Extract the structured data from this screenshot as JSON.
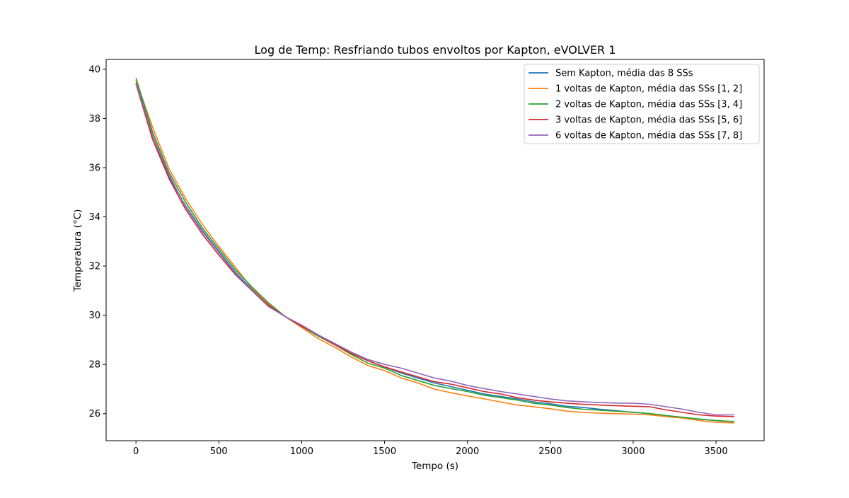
{
  "chart_data": {
    "type": "line",
    "title": "Log de Temp: Resfriando tubos envoltos por Kapton, eVOLVER 1",
    "xlabel": "Tempo (s)",
    "ylabel": "Temperatura (°C)",
    "xlim": [
      -180,
      3790
    ],
    "ylim": [
      24.9,
      40.4
    ],
    "xticks": [
      0,
      500,
      1000,
      1500,
      2000,
      2500,
      3000,
      3500
    ],
    "yticks": [
      26,
      28,
      30,
      32,
      34,
      36,
      38,
      40
    ],
    "xtick_labels": [
      "0",
      "500",
      "1000",
      "1500",
      "2000",
      "2500",
      "3000",
      "3500"
    ],
    "ytick_labels": [
      "26",
      "28",
      "30",
      "32",
      "34",
      "36",
      "38",
      "40"
    ],
    "grid": false,
    "legend_position": "top-right",
    "x": [
      0,
      100,
      200,
      300,
      400,
      500,
      600,
      700,
      800,
      900,
      1000,
      1100,
      1200,
      1300,
      1400,
      1500,
      1600,
      1700,
      1800,
      1900,
      2000,
      2100,
      2200,
      2300,
      2400,
      2500,
      2600,
      2700,
      2800,
      2900,
      3000,
      3100,
      3200,
      3300,
      3400,
      3500,
      3610
    ],
    "series": [
      {
        "name": "Sem Kapton, média das 8 SSs",
        "color": "#1f77b4",
        "values": [
          39.55,
          37.3,
          35.6,
          34.45,
          33.45,
          32.6,
          31.75,
          31.05,
          30.4,
          29.95,
          29.55,
          29.15,
          28.8,
          28.45,
          28.15,
          27.9,
          27.65,
          27.45,
          27.25,
          27.1,
          26.95,
          26.8,
          26.7,
          26.6,
          26.48,
          26.4,
          26.3,
          26.25,
          26.18,
          26.12,
          26.05,
          26.0,
          25.92,
          25.85,
          25.78,
          25.72,
          25.67
        ]
      },
      {
        "name": "1 voltas de Kapton, média das SSs [1, 2]",
        "color": "#ff7f0e",
        "values": [
          39.55,
          37.65,
          35.95,
          34.75,
          33.7,
          32.8,
          31.95,
          31.1,
          30.45,
          29.95,
          29.5,
          29.05,
          28.7,
          28.3,
          27.95,
          27.75,
          27.45,
          27.25,
          27.0,
          26.85,
          26.72,
          26.6,
          26.48,
          26.35,
          26.28,
          26.2,
          26.1,
          26.05,
          26.02,
          26.0,
          25.98,
          25.95,
          25.88,
          25.82,
          25.72,
          25.65,
          25.62
        ]
      },
      {
        "name": "2 voltas de Kapton, média das SSs [3, 4]",
        "color": "#2ca02c",
        "values": [
          39.65,
          37.45,
          35.8,
          34.6,
          33.55,
          32.7,
          31.85,
          31.15,
          30.5,
          29.95,
          29.55,
          29.15,
          28.8,
          28.4,
          28.05,
          27.85,
          27.55,
          27.35,
          27.15,
          27.02,
          26.9,
          26.75,
          26.65,
          26.55,
          26.42,
          26.35,
          26.25,
          26.18,
          26.14,
          26.1,
          26.06,
          26.0,
          25.92,
          25.85,
          25.78,
          25.72,
          25.68
        ]
      },
      {
        "name": "3 voltas de Kapton, média das SSs [5, 6]",
        "color": "#d62728",
        "values": [
          39.4,
          37.15,
          35.55,
          34.3,
          33.3,
          32.45,
          31.65,
          31.0,
          30.4,
          29.95,
          29.55,
          29.2,
          28.8,
          28.45,
          28.15,
          27.9,
          27.7,
          27.5,
          27.3,
          27.2,
          27.05,
          26.9,
          26.8,
          26.65,
          26.55,
          26.48,
          26.42,
          26.38,
          26.35,
          26.32,
          26.3,
          26.28,
          26.15,
          26.05,
          25.95,
          25.9,
          25.88
        ]
      },
      {
        "name": "6 voltas de Kapton, média das SSs [7, 8]",
        "color": "#9467bd",
        "values": [
          39.45,
          37.3,
          35.7,
          34.4,
          33.4,
          32.55,
          31.7,
          31.0,
          30.35,
          29.95,
          29.6,
          29.2,
          28.85,
          28.5,
          28.2,
          28.0,
          27.85,
          27.65,
          27.45,
          27.32,
          27.15,
          27.02,
          26.9,
          26.8,
          26.7,
          26.6,
          26.52,
          26.48,
          26.45,
          26.43,
          26.42,
          26.38,
          26.28,
          26.18,
          26.05,
          25.95,
          25.95
        ]
      }
    ]
  }
}
